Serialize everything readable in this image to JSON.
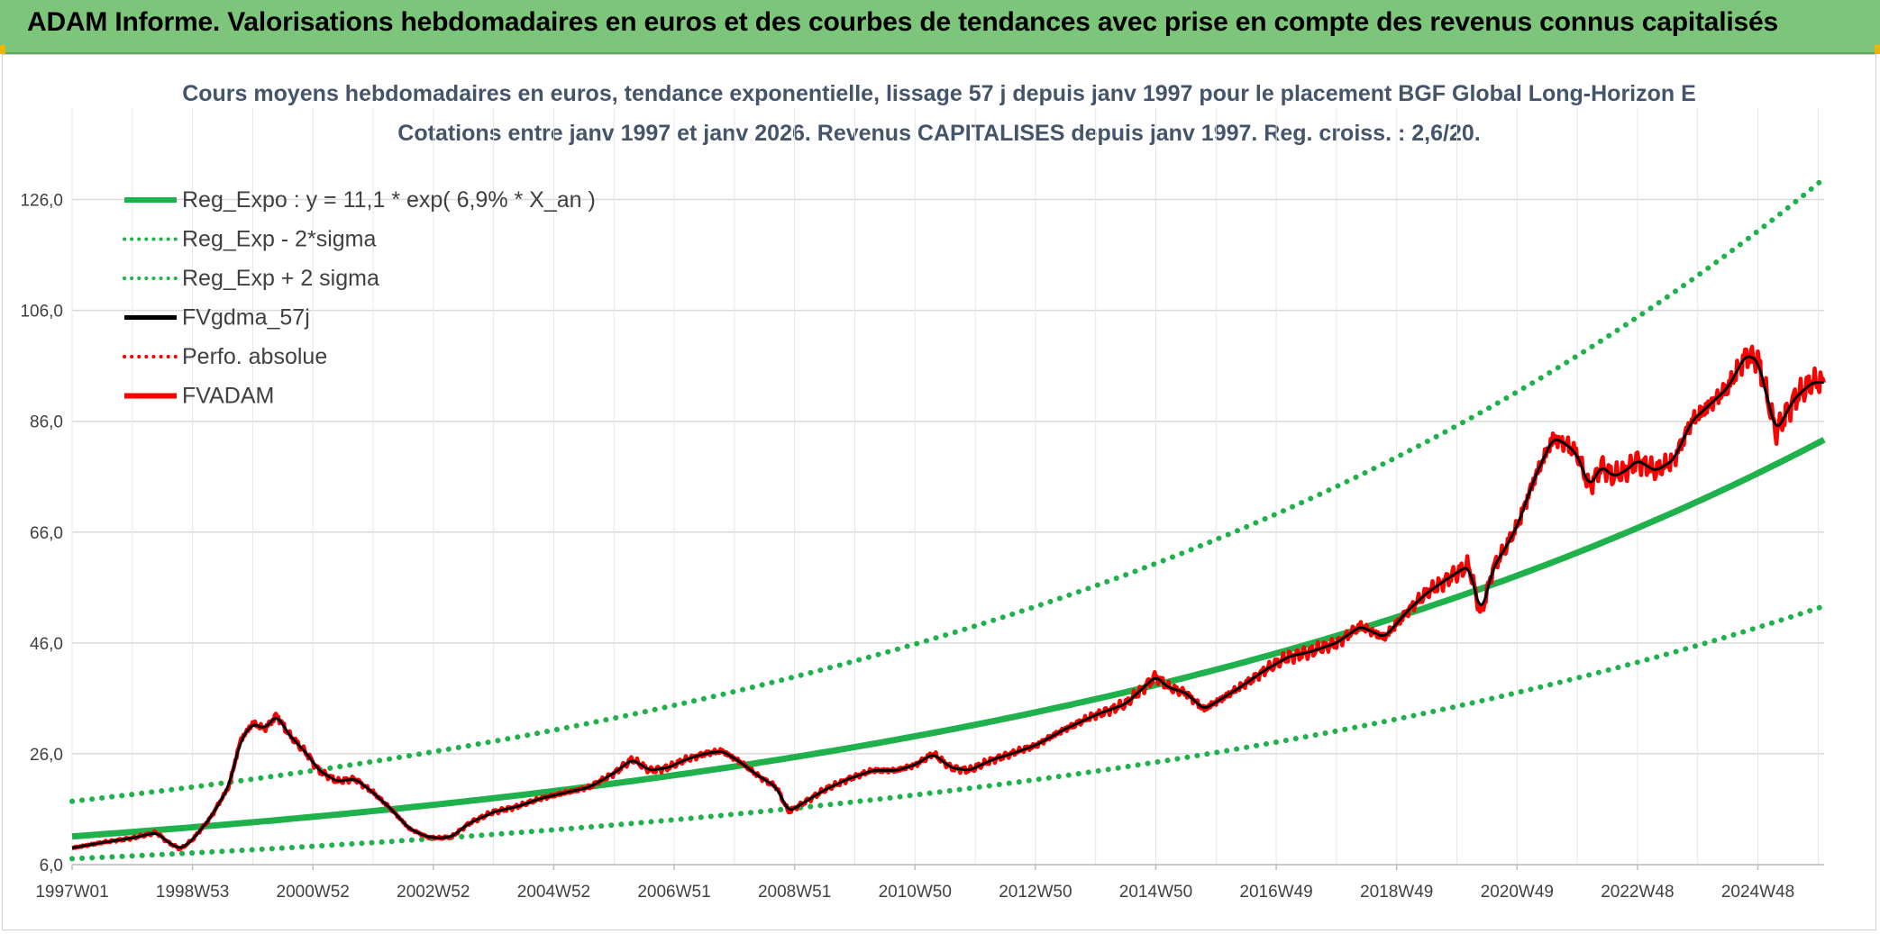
{
  "header": {
    "title": "ADAM Informe. Valorisations hebdomadaires en euros et des courbes de tendances avec prise en compte des revenus connus capitalisés"
  },
  "colors": {
    "banner": "#7dc57a",
    "regression": "#1fb14b",
    "smoothed": "#000000",
    "price": "#ff0000",
    "grid": "#d9d9d9"
  },
  "chart_data": {
    "type": "line",
    "title": "Cours moyens hebdomadaires en euros, tendance exponentielle, lissage 57 j depuis janv 1997 pour le placement BGF Global Long-Horizon E",
    "subtitle": "Cotations entre janv 1997 et janv 2026. Revenus CAPITALISES depuis janv 1997. Reg. croiss. : 2,6/20.",
    "xlabel": "",
    "ylabel": "",
    "x_range": [
      1997.0,
      2026.1
    ],
    "ylim": [
      6,
      136
    ],
    "y_ticks": [
      "6,0",
      "26,0",
      "46,0",
      "66,0",
      "86,0",
      "106,0",
      "126,0"
    ],
    "y_tick_values": [
      6,
      26,
      46,
      66,
      86,
      106,
      126
    ],
    "x_ticks": [
      {
        "label": "1997W01",
        "x": 1997.0
      },
      {
        "label": "1998W53",
        "x": 1999.0
      },
      {
        "label": "2000W52",
        "x": 2001.0
      },
      {
        "label": "2002W52",
        "x": 2003.0
      },
      {
        "label": "2004W52",
        "x": 2005.0
      },
      {
        "label": "2006W51",
        "x": 2007.0
      },
      {
        "label": "2008W51",
        "x": 2009.0
      },
      {
        "label": "2010W50",
        "x": 2011.0
      },
      {
        "label": "2012W50",
        "x": 2013.0
      },
      {
        "label": "2014W50",
        "x": 2015.0
      },
      {
        "label": "2016W49",
        "x": 2017.0
      },
      {
        "label": "2018W49",
        "x": 2019.0
      },
      {
        "label": "2020W49",
        "x": 2021.0
      },
      {
        "label": "2022W48",
        "x": 2023.0
      },
      {
        "label": "2024W48",
        "x": 2025.0
      }
    ],
    "grid": true,
    "legend_position": "top-left",
    "regression": {
      "a": 11.1,
      "rate": 0.069,
      "x0": 1997.0,
      "sigma_factor": 1.57
    },
    "series": [
      {
        "name": "Reg_Expo : y = 11,1 * exp( 6,9% *  X_an )",
        "style": "solid",
        "color": "#1fb14b"
      },
      {
        "name": "Reg_Exp - 2*sigma",
        "style": "dotted",
        "color": "#1fb14b"
      },
      {
        "name": "Reg_Exp + 2 sigma",
        "style": "dotted",
        "color": "#1fb14b"
      },
      {
        "name": "FVgdma_57j",
        "style": "solid",
        "color": "#000000"
      },
      {
        "name": "Perfo. absolue",
        "style": "dotted",
        "color": "#ff0000"
      },
      {
        "name": "FVADAM",
        "style": "solid",
        "color": "#ff0000",
        "x": [
          1997.0,
          1997.5,
          1998.0,
          1998.4,
          1998.6,
          1998.8,
          1999.0,
          1999.3,
          1999.6,
          1999.8,
          2000.0,
          2000.2,
          2000.4,
          2000.6,
          2000.9,
          2001.1,
          2001.4,
          2001.7,
          2002.0,
          2002.3,
          2002.6,
          2002.9,
          2003.1,
          2003.3,
          2003.6,
          2004.0,
          2004.4,
          2004.8,
          2005.2,
          2005.6,
          2006.0,
          2006.3,
          2006.6,
          2006.9,
          2007.2,
          2007.5,
          2007.8,
          2008.1,
          2008.4,
          2008.7,
          2008.9,
          2009.2,
          2009.5,
          2009.9,
          2010.3,
          2010.7,
          2011.0,
          2011.3,
          2011.6,
          2011.9,
          2012.3,
          2012.6,
          2013.0,
          2013.5,
          2014.0,
          2014.5,
          2015.0,
          2015.2,
          2015.5,
          2015.8,
          2016.1,
          2016.4,
          2016.8,
          2017.2,
          2017.6,
          2018.0,
          2018.4,
          2018.8,
          2019.2,
          2019.5,
          2019.9,
          2020.2,
          2020.4,
          2020.6,
          2020.8,
          2021.0,
          2021.3,
          2021.6,
          2021.8,
          2022.0,
          2022.2,
          2022.4,
          2022.6,
          2022.8,
          2023.0,
          2023.3,
          2023.6,
          2023.9,
          2024.2,
          2024.5,
          2024.8,
          2025.0,
          2025.3,
          2025.6,
          2025.9,
          2026.1
        ],
        "y": [
          9.0,
          10.0,
          10.8,
          11.8,
          10.0,
          8.8,
          10.5,
          14.5,
          20.0,
          28.5,
          31.5,
          30.5,
          33.0,
          29.5,
          26.0,
          23.0,
          21.0,
          21.5,
          19.0,
          16.0,
          12.5,
          11.0,
          10.8,
          11.0,
          13.5,
          15.5,
          16.5,
          18.0,
          19.0,
          20.0,
          22.5,
          25.0,
          23.0,
          23.5,
          25.0,
          26.0,
          26.5,
          24.5,
          22.0,
          20.0,
          15.5,
          17.5,
          19.5,
          21.5,
          23.0,
          23.0,
          24.0,
          26.0,
          23.5,
          23.0,
          25.0,
          26.0,
          27.5,
          30.5,
          33.0,
          35.0,
          40.0,
          38.0,
          37.0,
          34.0,
          36.0,
          38.0,
          41.0,
          43.5,
          44.5,
          46.0,
          49.0,
          47.0,
          52.0,
          55.0,
          58.0,
          60.0,
          51.0,
          59.5,
          63.0,
          67.0,
          76.0,
          83.0,
          82.0,
          80.0,
          74.0,
          78.0,
          76.0,
          77.0,
          79.0,
          77.0,
          79.0,
          86.0,
          89.0,
          92.0,
          98.0,
          97.0,
          84.0,
          90.0,
          93.0,
          93.0
        ]
      }
    ]
  }
}
